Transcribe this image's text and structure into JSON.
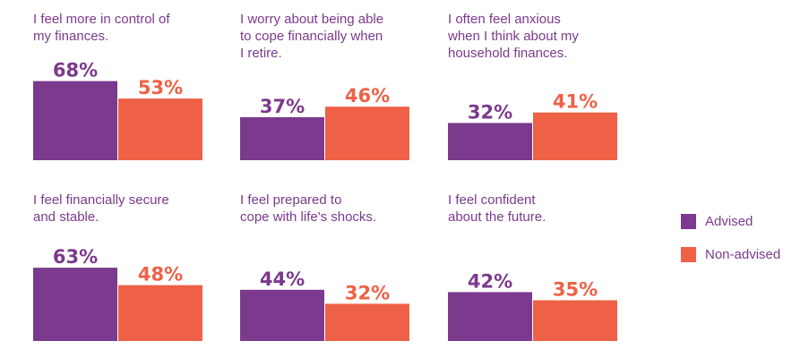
{
  "legend": [
    {
      "label": "Advised",
      "color": "#7b3a8d"
    },
    {
      "label": "Non-advised",
      "color": "#ee6146"
    }
  ],
  "chart_data": [
    {
      "type": "bar",
      "title": "I feel more in control of\nmy finances.",
      "categories": [
        "Advised",
        "Non-advised"
      ],
      "values": [
        68,
        53
      ],
      "labels": [
        "68%",
        "53%"
      ],
      "ylim": [
        0,
        100
      ]
    },
    {
      "type": "bar",
      "title": "I worry about being able\nto cope financially when\nI retire.",
      "categories": [
        "Advised",
        "Non-advised"
      ],
      "values": [
        37,
        46
      ],
      "labels": [
        "37%",
        "46%"
      ],
      "ylim": [
        0,
        100
      ]
    },
    {
      "type": "bar",
      "title": "I often feel anxious\nwhen I think about my\nhousehold finances.",
      "categories": [
        "Advised",
        "Non-advised"
      ],
      "values": [
        32,
        41
      ],
      "labels": [
        "32%",
        "41%"
      ],
      "ylim": [
        0,
        100
      ]
    },
    {
      "type": "bar",
      "title": "I feel financially secure\nand stable.",
      "categories": [
        "Advised",
        "Non-advised"
      ],
      "values": [
        63,
        48
      ],
      "labels": [
        "63%",
        "48%"
      ],
      "ylim": [
        0,
        100
      ]
    },
    {
      "type": "bar",
      "title": "I feel prepared to\ncope with life's shocks.",
      "categories": [
        "Advised",
        "Non-advised"
      ],
      "values": [
        44,
        32
      ],
      "labels": [
        "44%",
        "32%"
      ],
      "ylim": [
        0,
        100
      ]
    },
    {
      "type": "bar",
      "title": "I feel confident\nabout the future.",
      "categories": [
        "Advised",
        "Non-advised"
      ],
      "values": [
        42,
        35
      ],
      "labels": [
        "42%",
        "35%"
      ],
      "ylim": [
        0,
        100
      ]
    }
  ]
}
